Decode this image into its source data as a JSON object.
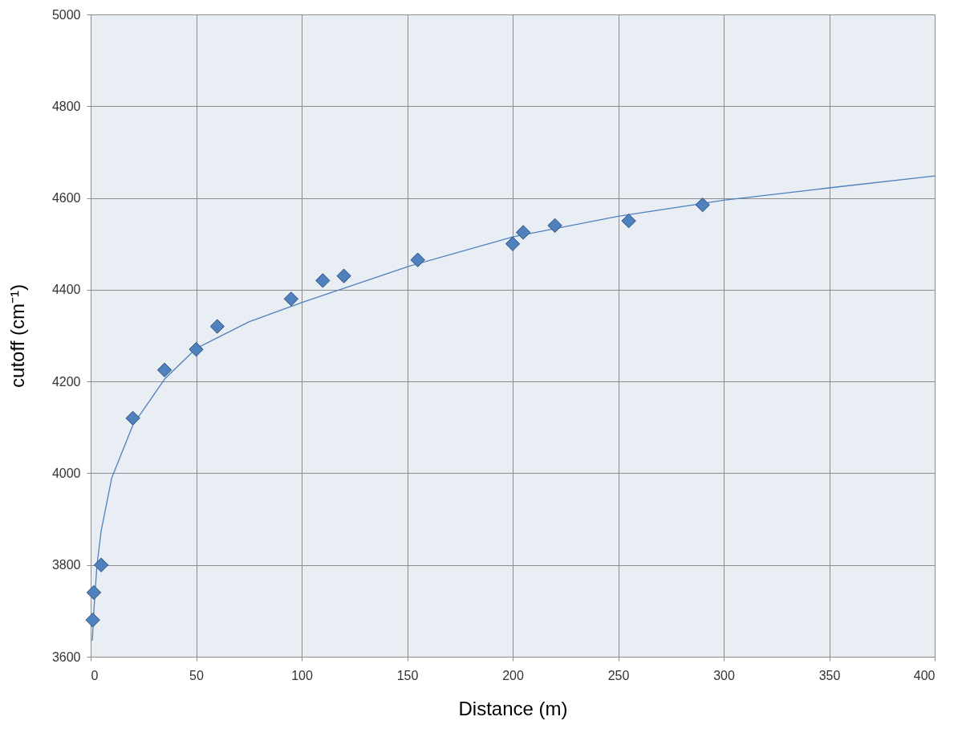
{
  "chart_data": {
    "type": "scatter",
    "xlabel": "Distance (m)",
    "ylabel": "cutoff (cm⁻¹)",
    "xlim": [
      0,
      400
    ],
    "xticks": [
      0,
      50,
      100,
      150,
      200,
      250,
      300,
      350,
      400
    ],
    "ylim": [
      3600,
      5000
    ],
    "yticks": [
      3600,
      3800,
      4000,
      4200,
      4400,
      4600,
      4800,
      5000
    ],
    "grid": true,
    "legend": false,
    "marker": "diamond",
    "series": [
      {
        "type": "line",
        "color": "#4f81bd",
        "marker": "none",
        "x": [
          0.8,
          1.5,
          3,
          5,
          10,
          20,
          35,
          50,
          75,
          100,
          150,
          200,
          250,
          300,
          350,
          400
        ],
        "values": [
          3635,
          3700,
          3800,
          3875,
          3990,
          4105,
          4205,
          4272,
          4330,
          4372,
          4450,
          4515,
          4560,
          4595,
          4622,
          4648
        ]
      },
      {
        "color": "#4f81bd",
        "x": [
          1,
          1.5,
          5,
          20,
          35,
          50,
          60,
          95,
          110,
          120,
          155,
          200,
          205,
          220,
          255,
          290
        ],
        "values": [
          3680,
          3740,
          3800,
          4120,
          4225,
          4270,
          4320,
          4380,
          4420,
          4430,
          4465,
          4500,
          4525,
          4540,
          4550,
          4585
        ]
      }
    ]
  }
}
